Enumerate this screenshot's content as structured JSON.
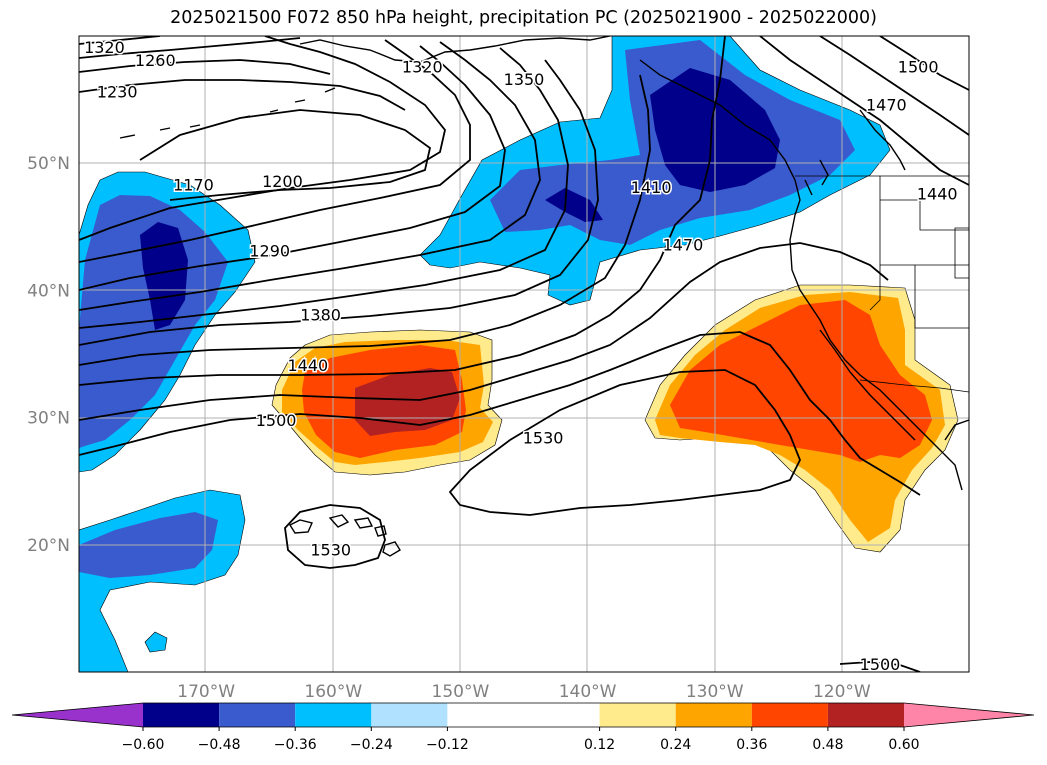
{
  "title": "2025021500 F072 850 hPa height, precipitation PC (2025021900 - 2025022000)",
  "chart_data": {
    "type": "contour-map",
    "title": "2025021500 F072 850 hPa height, precipitation PC (2025021900 - 2025022000)",
    "projection": "PlateCarree",
    "lon_range": [
      -180,
      -110
    ],
    "lat_range": [
      10,
      60
    ],
    "grid": true,
    "x_ticks": [
      "170°W",
      "160°W",
      "150°W",
      "140°W",
      "130°W",
      "120°W"
    ],
    "x_tick_values": [
      -170,
      -160,
      -150,
      -140,
      -130,
      -120
    ],
    "y_ticks": [
      "20°N",
      "30°N",
      "40°N",
      "50°N"
    ],
    "y_tick_values": [
      20,
      30,
      40,
      50
    ],
    "contour_field": "850 hPa height (m)",
    "contour_labels": [
      {
        "text": "1320",
        "lon": -178,
        "lat": 59
      },
      {
        "text": "1260",
        "lon": -174,
        "lat": 58
      },
      {
        "text": "1230",
        "lon": -177,
        "lat": 55.5
      },
      {
        "text": "1320",
        "lon": -153,
        "lat": 57.5
      },
      {
        "text": "1350",
        "lon": -145,
        "lat": 56.5
      },
      {
        "text": "1170",
        "lon": -171,
        "lat": 48.2
      },
      {
        "text": "1200",
        "lon": -164,
        "lat": 48.5
      },
      {
        "text": "1290",
        "lon": -165,
        "lat": 43
      },
      {
        "text": "1380",
        "lon": -161,
        "lat": 38
      },
      {
        "text": "1440",
        "lon": -162,
        "lat": 34
      },
      {
        "text": "1500",
        "lon": -164.5,
        "lat": 29.7
      },
      {
        "text": "1530",
        "lon": -143.5,
        "lat": 28.3
      },
      {
        "text": "1530",
        "lon": -160.2,
        "lat": 19.5
      },
      {
        "text": "1410",
        "lon": -135,
        "lat": 48
      },
      {
        "text": "1470",
        "lon": -132.5,
        "lat": 43.5
      },
      {
        "text": "1500",
        "lon": -114,
        "lat": 57.5
      },
      {
        "text": "1470",
        "lon": -116.5,
        "lat": 54.5
      },
      {
        "text": "1440",
        "lon": -112.5,
        "lat": 47.5
      },
      {
        "text": "1500",
        "lon": -117,
        "lat": 10.5
      }
    ],
    "fill_field": "precipitation PC",
    "colorbar": {
      "orientation": "horizontal",
      "extend": "both",
      "tick_labels": [
        "−0.60",
        "−0.48",
        "−0.36",
        "−0.24",
        "−0.12",
        "0.12",
        "0.24",
        "0.36",
        "0.48",
        "0.60"
      ],
      "boundaries": [
        -0.6,
        -0.48,
        -0.36,
        -0.24,
        -0.12,
        0.12,
        0.24,
        0.36,
        0.48,
        0.6
      ],
      "colors": [
        "#9932cc",
        "#00008b",
        "#3a5bcd",
        "#00bfff",
        "#b0e2ff",
        "#ffffff",
        "#ffea8c",
        "#ffa500",
        "#ff4500",
        "#b22222",
        "#ff85a8"
      ]
    }
  }
}
